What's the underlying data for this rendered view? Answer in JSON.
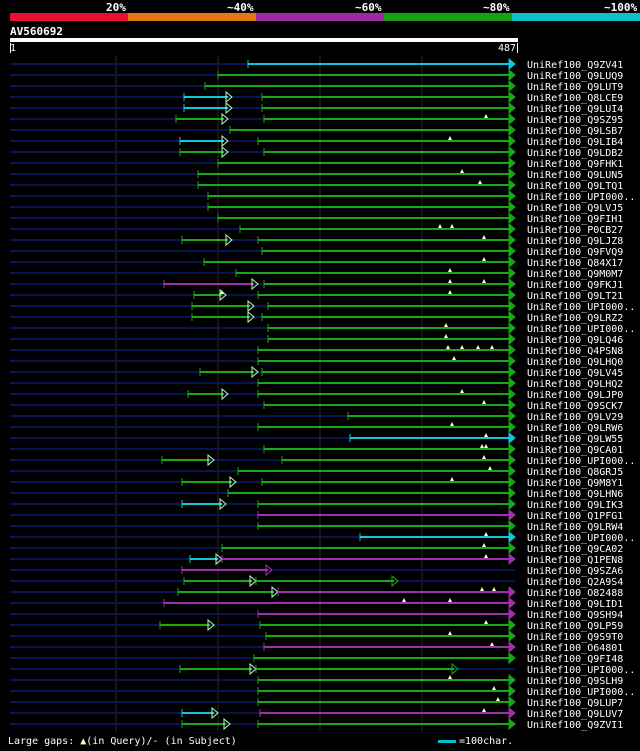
{
  "legend": [
    {
      "label": "20%",
      "color": "#e8102a"
    },
    {
      "label": "~40%",
      "color": "#e07a10"
    },
    {
      "label": "~60%",
      "color": "#9a2ca0"
    },
    {
      "label": "~80%",
      "color": "#16a016"
    },
    {
      "label": "~100%",
      "color": "#10c0c8"
    }
  ],
  "query": {
    "id": "AV560692",
    "start": "1",
    "end": "487"
  },
  "colors": {
    "green": "#18a818",
    "cyan": "#10c8d8",
    "purple": "#a030a8",
    "navy": "#0a1450",
    "grid": "#2a2a2a",
    "gap": "#ffffcc"
  },
  "hits": [
    {
      "name": "UniRef100_Q9ZV41",
      "segs": [
        [
          248,
          515,
          "cyan"
        ]
      ],
      "gaps": []
    },
    {
      "name": "UniRef100_Q9LUQ9",
      "segs": [
        [
          218,
          515,
          "green"
        ]
      ],
      "gaps": []
    },
    {
      "name": "UniRef100_Q9LUT9",
      "segs": [
        [
          205,
          515,
          "green"
        ]
      ],
      "gaps": []
    },
    {
      "name": "UniRef100_Q8LCE9",
      "segs": [
        [
          184,
          232,
          "cyan"
        ],
        [
          262,
          515,
          "green"
        ]
      ],
      "gaps": []
    },
    {
      "name": "UniRef100_Q9LUI4",
      "segs": [
        [
          184,
          232,
          "cyan"
        ],
        [
          262,
          515,
          "green"
        ]
      ],
      "gaps": []
    },
    {
      "name": "UniRef100_Q9SZ95",
      "segs": [
        [
          176,
          228,
          "green"
        ],
        [
          264,
          515,
          "green"
        ]
      ],
      "gaps": [
        486
      ]
    },
    {
      "name": "UniRef100_Q9LSB7",
      "segs": [
        [
          230,
          515,
          "green"
        ]
      ],
      "gaps": []
    },
    {
      "name": "UniRef100_Q9LIB4",
      "segs": [
        [
          180,
          228,
          "cyan"
        ],
        [
          258,
          515,
          "green"
        ]
      ],
      "gaps": [
        450
      ]
    },
    {
      "name": "UniRef100_Q9LDB2",
      "segs": [
        [
          180,
          228,
          "green"
        ],
        [
          264,
          515,
          "green"
        ]
      ],
      "gaps": []
    },
    {
      "name": "UniRef100_Q9FHK1",
      "segs": [
        [
          218,
          515,
          "green"
        ]
      ],
      "gaps": []
    },
    {
      "name": "UniRef100_Q9LUN5",
      "segs": [
        [
          198,
          515,
          "green"
        ]
      ],
      "gaps": [
        462
      ]
    },
    {
      "name": "UniRef100_Q9LTQ1",
      "segs": [
        [
          198,
          515,
          "green"
        ]
      ],
      "gaps": [
        480
      ]
    },
    {
      "name": "UniRef100_UPI000..",
      "segs": [
        [
          208,
          515,
          "green"
        ]
      ],
      "gaps": []
    },
    {
      "name": "UniRef100_Q9LVJ5",
      "segs": [
        [
          208,
          515,
          "green"
        ]
      ],
      "gaps": []
    },
    {
      "name": "UniRef100_Q9FIH1",
      "segs": [
        [
          218,
          515,
          "green"
        ]
      ],
      "gaps": []
    },
    {
      "name": "UniRef100_P0CB27",
      "segs": [
        [
          240,
          515,
          "green"
        ]
      ],
      "gaps": [
        440,
        452
      ]
    },
    {
      "name": "UniRef100_Q9LJZ8",
      "segs": [
        [
          182,
          232,
          "green"
        ],
        [
          258,
          515,
          "green"
        ]
      ],
      "gaps": [
        484
      ]
    },
    {
      "name": "UniRef100_Q9FVQ9",
      "segs": [
        [
          262,
          515,
          "green"
        ]
      ],
      "gaps": []
    },
    {
      "name": "UniRef100_Q84X17",
      "segs": [
        [
          204,
          515,
          "green"
        ]
      ],
      "gaps": [
        484
      ]
    },
    {
      "name": "UniRef100_Q9M0M7",
      "segs": [
        [
          236,
          515,
          "green"
        ]
      ],
      "gaps": [
        450
      ]
    },
    {
      "name": "UniRef100_Q9FKJ1",
      "segs": [
        [
          164,
          258,
          "purple"
        ],
        [
          264,
          515,
          "green"
        ]
      ],
      "gaps": [
        450,
        484
      ]
    },
    {
      "name": "UniRef100_Q9LT21",
      "segs": [
        [
          194,
          226,
          "green"
        ],
        [
          258,
          515,
          "green"
        ]
      ],
      "gaps": [
        222,
        450
      ]
    },
    {
      "name": "UniRef100_UPI000..",
      "segs": [
        [
          192,
          254,
          "green"
        ],
        [
          268,
          515,
          "green"
        ]
      ],
      "gaps": []
    },
    {
      "name": "UniRef100_Q9LRZ2",
      "segs": [
        [
          192,
          254,
          "green"
        ],
        [
          262,
          515,
          "green"
        ]
      ],
      "gaps": []
    },
    {
      "name": "UniRef100_UPI000..",
      "segs": [
        [
          268,
          515,
          "green"
        ]
      ],
      "gaps": [
        446
      ]
    },
    {
      "name": "UniRef100_Q9LQ46",
      "segs": [
        [
          268,
          515,
          "green"
        ]
      ],
      "gaps": [
        446
      ]
    },
    {
      "name": "UniRef100_Q4PSN8",
      "segs": [
        [
          258,
          515,
          "green"
        ]
      ],
      "gaps": [
        448,
        462,
        478,
        492
      ]
    },
    {
      "name": "UniRef100_Q9LHQ0",
      "segs": [
        [
          258,
          515,
          "green"
        ]
      ],
      "gaps": [
        454
      ]
    },
    {
      "name": "UniRef100_Q9LV45",
      "segs": [
        [
          200,
          258,
          "green"
        ],
        [
          262,
          515,
          "green"
        ]
      ],
      "gaps": []
    },
    {
      "name": "UniRef100_Q9LHQ2",
      "segs": [
        [
          258,
          515,
          "green"
        ]
      ],
      "gaps": []
    },
    {
      "name": "UniRef100_Q9LJP0",
      "segs": [
        [
          188,
          228,
          "green"
        ],
        [
          258,
          515,
          "green"
        ]
      ],
      "gaps": [
        462
      ]
    },
    {
      "name": "UniRef100_Q9SCK7",
      "segs": [
        [
          264,
          515,
          "green"
        ]
      ],
      "gaps": [
        484
      ]
    },
    {
      "name": "UniRef100_Q9LV29",
      "segs": [
        [
          348,
          515,
          "green"
        ]
      ],
      "gaps": []
    },
    {
      "name": "UniRef100_Q9LRW6",
      "segs": [
        [
          258,
          515,
          "green"
        ]
      ],
      "gaps": [
        452
      ]
    },
    {
      "name": "UniRef100_Q9LW55",
      "segs": [
        [
          350,
          515,
          "cyan"
        ]
      ],
      "gaps": [
        486
      ]
    },
    {
      "name": "UniRef100_Q9CA01",
      "segs": [
        [
          264,
          515,
          "green"
        ]
      ],
      "gaps": [
        482,
        486
      ]
    },
    {
      "name": "UniRef100_UPI000..",
      "segs": [
        [
          162,
          214,
          "green"
        ],
        [
          282,
          515,
          "green"
        ]
      ],
      "gaps": [
        484
      ]
    },
    {
      "name": "UniRef100_Q8GRJ5",
      "segs": [
        [
          238,
          515,
          "green"
        ]
      ],
      "gaps": [
        490
      ]
    },
    {
      "name": "UniRef100_Q9M8Y1",
      "segs": [
        [
          182,
          236,
          "green"
        ],
        [
          262,
          515,
          "green"
        ]
      ],
      "gaps": [
        452
      ]
    },
    {
      "name": "UniRef100_Q9LHN6",
      "segs": [
        [
          228,
          515,
          "green"
        ]
      ],
      "gaps": []
    },
    {
      "name": "UniRef100_Q9LIK3",
      "segs": [
        [
          182,
          226,
          "cyan"
        ],
        [
          258,
          515,
          "green"
        ]
      ],
      "gaps": []
    },
    {
      "name": "UniRef100_Q1PFG1",
      "segs": [
        [
          258,
          515,
          "purple"
        ]
      ],
      "gaps": []
    },
    {
      "name": "UniRef100_Q9LRW4",
      "segs": [
        [
          258,
          515,
          "green"
        ]
      ],
      "gaps": []
    },
    {
      "name": "UniRef100_UPI000..",
      "segs": [
        [
          360,
          515,
          "cyan"
        ]
      ],
      "gaps": [
        486
      ]
    },
    {
      "name": "UniRef100_Q9CA02",
      "segs": [
        [
          222,
          515,
          "green"
        ]
      ],
      "gaps": [
        484
      ]
    },
    {
      "name": "UniRef100_Q1PEN8",
      "segs": [
        [
          190,
          222,
          "cyan"
        ],
        [
          222,
          515,
          "purple"
        ]
      ],
      "gaps": [
        486
      ]
    },
    {
      "name": "UniRef100_Q9SZA6",
      "segs": [
        [
          182,
          272,
          "purple"
        ]
      ],
      "gaps": []
    },
    {
      "name": "UniRef100_Q2A9S4",
      "segs": [
        [
          184,
          256,
          "green"
        ],
        [
          256,
          398,
          "green"
        ]
      ],
      "gaps": []
    },
    {
      "name": "UniRef100_O82488",
      "segs": [
        [
          178,
          278,
          "green"
        ],
        [
          278,
          515,
          "purple"
        ]
      ],
      "gaps": [
        482,
        494
      ]
    },
    {
      "name": "UniRef100_Q9LID1",
      "segs": [
        [
          164,
          515,
          "purple"
        ]
      ],
      "gaps": [
        404,
        450
      ]
    },
    {
      "name": "UniRef100_Q9SH94",
      "segs": [
        [
          258,
          515,
          "purple"
        ]
      ],
      "gaps": []
    },
    {
      "name": "UniRef100_Q9LP59",
      "segs": [
        [
          160,
          214,
          "green"
        ],
        [
          260,
          515,
          "green"
        ]
      ],
      "gaps": [
        486
      ]
    },
    {
      "name": "UniRef100_Q9S9T0",
      "segs": [
        [
          266,
          515,
          "green"
        ]
      ],
      "gaps": [
        450
      ]
    },
    {
      "name": "UniRef100_O64801",
      "segs": [
        [
          264,
          515,
          "purple"
        ]
      ],
      "gaps": [
        492
      ]
    },
    {
      "name": "UniRef100_Q9FI48",
      "segs": [
        [
          254,
          515,
          "green"
        ]
      ],
      "gaps": []
    },
    {
      "name": "UniRef100_UPI000..",
      "segs": [
        [
          180,
          256,
          "green"
        ],
        [
          256,
          458,
          "green"
        ]
      ],
      "gaps": []
    },
    {
      "name": "UniRef100_Q9SLH9",
      "segs": [
        [
          258,
          515,
          "green"
        ]
      ],
      "gaps": [
        450
      ]
    },
    {
      "name": "UniRef100_UPI000..",
      "segs": [
        [
          258,
          515,
          "green"
        ]
      ],
      "gaps": [
        494
      ]
    },
    {
      "name": "UniRef100_Q9LUP7",
      "segs": [
        [
          258,
          515,
          "green"
        ]
      ],
      "gaps": [
        498
      ]
    },
    {
      "name": "UniRef100_Q9LUV7",
      "segs": [
        [
          182,
          218,
          "cyan"
        ],
        [
          260,
          515,
          "purple"
        ]
      ],
      "gaps": [
        484
      ]
    },
    {
      "name": "UniRef100_Q9ZVI1",
      "segs": [
        [
          182,
          230,
          "green"
        ],
        [
          258,
          515,
          "green"
        ]
      ],
      "gaps": []
    }
  ],
  "footer": {
    "label": "Large gaps: ",
    "gap_query": "(in Query)/- (in Subject)",
    "scale": "=100char."
  }
}
